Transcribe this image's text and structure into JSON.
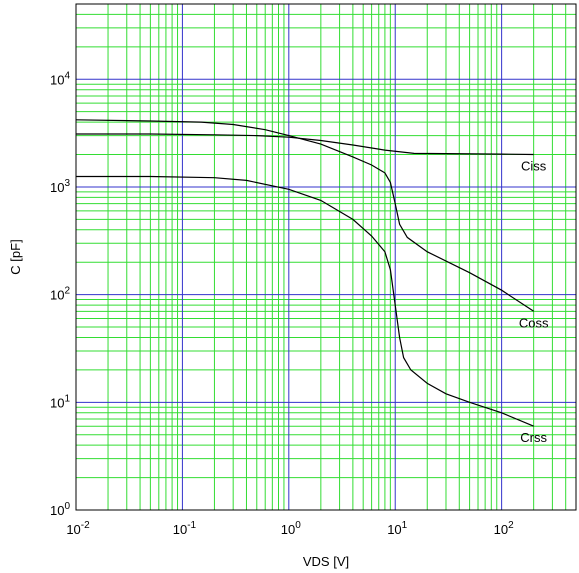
{
  "chart_data": {
    "type": "line",
    "title": "",
    "xlabel": "VDS [V]",
    "ylabel": "C [pF]",
    "x_scale": "log",
    "y_scale": "log",
    "xlim": [
      0.01,
      500
    ],
    "ylim": [
      1,
      50000
    ],
    "x_ticks": [
      {
        "value": 0.01,
        "base": "10",
        "exp": "-2"
      },
      {
        "value": 0.1,
        "base": "10",
        "exp": "-1"
      },
      {
        "value": 1,
        "base": "10",
        "exp": "0"
      },
      {
        "value": 10,
        "base": "10",
        "exp": "1"
      },
      {
        "value": 100,
        "base": "10",
        "exp": "2"
      }
    ],
    "y_ticks": [
      {
        "value": 1,
        "base": "10",
        "exp": "0"
      },
      {
        "value": 10,
        "base": "10",
        "exp": "1"
      },
      {
        "value": 100,
        "base": "10",
        "exp": "2"
      },
      {
        "value": 1000,
        "base": "10",
        "exp": "3"
      },
      {
        "value": 10000,
        "base": "10",
        "exp": "4"
      }
    ],
    "grid": true,
    "grid_major_color": "#3333cc",
    "grid_minor_color": "#33dd33",
    "line_color": "#000000",
    "series": [
      {
        "name": "Ciss",
        "x": [
          0.01,
          0.05,
          0.2,
          0.5,
          1,
          2,
          4,
          8,
          15,
          30,
          100,
          200
        ],
        "y": [
          3100,
          3100,
          3050,
          3000,
          2900,
          2700,
          2450,
          2200,
          2050,
          2040,
          2020,
          2000
        ]
      },
      {
        "name": "Coss",
        "x": [
          0.01,
          0.05,
          0.15,
          0.3,
          0.6,
          1,
          2,
          4,
          6,
          8,
          9,
          10,
          11,
          13,
          20,
          50,
          100,
          200
        ],
        "y": [
          4200,
          4100,
          4000,
          3800,
          3400,
          3000,
          2500,
          1900,
          1600,
          1350,
          1100,
          700,
          450,
          340,
          250,
          160,
          110,
          70
        ]
      },
      {
        "name": "Crss",
        "x": [
          0.01,
          0.05,
          0.2,
          0.4,
          1,
          2,
          4,
          6,
          8,
          9,
          10,
          11,
          12,
          14,
          20,
          30,
          50,
          100,
          200
        ],
        "y": [
          1250,
          1250,
          1220,
          1150,
          950,
          750,
          500,
          350,
          250,
          170,
          80,
          40,
          26,
          20,
          15,
          12,
          10,
          8,
          6
        ]
      }
    ]
  }
}
